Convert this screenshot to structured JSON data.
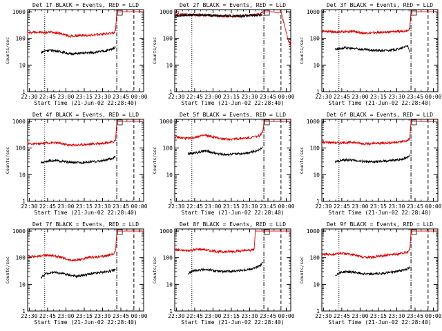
{
  "figure": {
    "colors": {
      "events": "#000000",
      "lld": "#e00000",
      "axis": "#000000",
      "background": "#ffffff"
    }
  },
  "chart_data": [
    {
      "type": "line",
      "title": "Det 1f BLACK = Events, RED = LLD",
      "xlabel": "Start Time (21-Jun-02 22:28:40)",
      "ylabel": "Counts/sec",
      "yscale": "log",
      "ylim": [
        1,
        1200
      ],
      "ytick_labels": [
        "1",
        "10",
        "100",
        "1000"
      ],
      "x_tick_labels": [
        "22:30",
        "22:45",
        "23:00",
        "23:15",
        "23:30",
        "23:45",
        "00:00"
      ],
      "xlim_minutes": [
        0,
        95
      ],
      "markers": {
        "dotted_minute": 14,
        "dashdot_minute": 73,
        "dashed_minute": 87
      },
      "series": [
        {
          "name": "LLD",
          "color": "#e00000",
          "x": [
            0,
            5,
            10,
            15,
            20,
            25,
            30,
            35,
            40,
            45,
            50,
            55,
            60,
            65,
            70,
            72,
            73,
            80,
            87,
            90,
            95
          ],
          "y": [
            160,
            175,
            170,
            165,
            175,
            160,
            140,
            120,
            125,
            130,
            130,
            135,
            145,
            150,
            160,
            200,
            1000,
            1000,
            1000,
            1000,
            1000
          ]
        },
        {
          "name": "Events",
          "color": "#000000",
          "x": [
            11,
            15,
            20,
            25,
            30,
            35,
            40,
            45,
            50,
            55,
            60,
            65,
            70,
            72
          ],
          "y": [
            30,
            35,
            36,
            33,
            30,
            26,
            27,
            28,
            29,
            30,
            32,
            35,
            42,
            48
          ]
        }
      ]
    },
    {
      "type": "line",
      "title": "Det 2f BLACK = Events, RED = LLD",
      "xlabel": "Start Time (21-Jun-02 22:28:40)",
      "ylabel": "Counts/sec",
      "yscale": "log",
      "ylim": [
        1,
        1200
      ],
      "ytick_labels": [
        "1",
        "10",
        "100",
        "1000"
      ],
      "x_tick_labels": [
        "22:30",
        "22:45",
        "23:00",
        "23:15",
        "23:30",
        "23:45",
        "00:00"
      ],
      "xlim_minutes": [
        0,
        95
      ],
      "markers": {
        "dotted_minute": 14,
        "dashdot_minute": 73,
        "dashed_minute": 87
      },
      "series": [
        {
          "name": "LLD",
          "color": "#e00000",
          "x": [
            0,
            5,
            10,
            15,
            20,
            25,
            30,
            35,
            40,
            45,
            50,
            55,
            60,
            65,
            70,
            72,
            73,
            76,
            80,
            84,
            87,
            90,
            93,
            95
          ],
          "y": [
            820,
            800,
            780,
            760,
            750,
            740,
            720,
            700,
            690,
            680,
            670,
            690,
            720,
            760,
            800,
            1000,
            1000,
            1000,
            1000,
            900,
            1000,
            300,
            80,
            60
          ]
        },
        {
          "name": "Events",
          "color": "#000000",
          "x": [
            0,
            5,
            10,
            15,
            20,
            25,
            30,
            35,
            40,
            45,
            50,
            55,
            60,
            65,
            70,
            72
          ],
          "y": [
            700,
            720,
            750,
            760,
            780,
            760,
            740,
            720,
            710,
            700,
            700,
            700,
            720,
            740,
            760,
            780
          ]
        }
      ]
    },
    {
      "type": "line",
      "title": "Det 3f BLACK = Events, RED = LLD",
      "xlabel": "Start Time (21-Jun-02 22:28:40)",
      "ylabel": "Counts/sec",
      "yscale": "log",
      "ylim": [
        1,
        1200
      ],
      "ytick_labels": [
        "1",
        "10",
        "100",
        "1000"
      ],
      "x_tick_labels": [
        "22:30",
        "22:45",
        "23:00",
        "23:15",
        "23:30",
        "23:45",
        "00:00"
      ],
      "xlim_minutes": [
        0,
        95
      ],
      "markers": {
        "dotted_minute": 14,
        "dashdot_minute": 73,
        "dashed_minute": 87
      },
      "series": [
        {
          "name": "LLD",
          "color": "#e00000",
          "x": [
            0,
            5,
            10,
            15,
            20,
            25,
            30,
            35,
            40,
            45,
            50,
            55,
            60,
            65,
            70,
            72,
            73,
            80,
            87,
            90,
            95
          ],
          "y": [
            190,
            185,
            175,
            175,
            180,
            185,
            170,
            160,
            160,
            165,
            170,
            175,
            180,
            185,
            200,
            240,
            1000,
            1000,
            1000,
            1000,
            1000
          ]
        },
        {
          "name": "Events",
          "color": "#000000",
          "x": [
            11,
            15,
            20,
            25,
            30,
            35,
            40,
            45,
            50,
            55,
            60,
            65,
            70,
            72
          ],
          "y": [
            40,
            42,
            44,
            42,
            40,
            38,
            36,
            35,
            35,
            36,
            38,
            42,
            55,
            30
          ]
        }
      ]
    },
    {
      "type": "line",
      "title": "Det 4f BLACK = Events, RED = LLD",
      "xlabel": "Start Time (21-Jun-02 22:28:40)",
      "ylabel": "Counts/sec",
      "yscale": "log",
      "ylim": [
        1,
        1200
      ],
      "ytick_labels": [
        "1",
        "10",
        "100",
        "1000"
      ],
      "x_tick_labels": [
        "22:30",
        "22:45",
        "23:00",
        "23:15",
        "23:30",
        "23:45",
        "00:00"
      ],
      "xlim_minutes": [
        0,
        95
      ],
      "markers": {
        "dotted_minute": 14,
        "dashdot_minute": 73,
        "dashed_minute": 87
      },
      "series": [
        {
          "name": "LLD",
          "color": "#e00000",
          "x": [
            0,
            5,
            10,
            15,
            20,
            25,
            30,
            35,
            40,
            45,
            50,
            55,
            60,
            65,
            70,
            72,
            73,
            80,
            87,
            90,
            95
          ],
          "y": [
            150,
            140,
            145,
            155,
            160,
            155,
            140,
            130,
            130,
            135,
            140,
            145,
            150,
            160,
            170,
            200,
            1000,
            1000,
            1000,
            1000,
            1000
          ]
        },
        {
          "name": "Events",
          "color": "#000000",
          "x": [
            11,
            15,
            20,
            25,
            30,
            35,
            40,
            45,
            50,
            55,
            60,
            65,
            70,
            72
          ],
          "y": [
            28,
            32,
            34,
            33,
            31,
            29,
            28,
            29,
            30,
            31,
            33,
            36,
            42,
            48
          ]
        }
      ]
    },
    {
      "type": "line",
      "title": "Det 5f BLACK = Events, RED = LLD",
      "xlabel": "Start Time (21-Jun-02 22:28:40)",
      "ylabel": "Counts/sec",
      "yscale": "log",
      "ylim": [
        1,
        1200
      ],
      "ytick_labels": [
        "1",
        "10",
        "100",
        "1000"
      ],
      "x_tick_labels": [
        "22:30",
        "22:45",
        "23:00",
        "23:15",
        "23:30",
        "23:45",
        "00:00"
      ],
      "xlim_minutes": [
        0,
        95
      ],
      "markers": {
        "dotted_minute": 14,
        "dashdot_minute": 73,
        "dashed_minute": 87
      },
      "series": [
        {
          "name": "LLD",
          "color": "#e00000",
          "x": [
            0,
            5,
            10,
            15,
            20,
            25,
            30,
            35,
            40,
            45,
            50,
            55,
            60,
            65,
            70,
            72,
            73,
            80,
            87,
            90,
            95
          ],
          "y": [
            260,
            240,
            230,
            240,
            280,
            300,
            270,
            240,
            220,
            215,
            220,
            230,
            240,
            260,
            300,
            400,
            1000,
            1000,
            1000,
            1000,
            1000
          ]
        },
        {
          "name": "Events",
          "color": "#000000",
          "x": [
            11,
            15,
            20,
            25,
            30,
            35,
            40,
            45,
            50,
            55,
            60,
            65,
            70,
            72
          ],
          "y": [
            60,
            65,
            70,
            78,
            70,
            62,
            58,
            58,
            60,
            63,
            68,
            75,
            90,
            110
          ]
        }
      ]
    },
    {
      "type": "line",
      "title": "Det 6f BLACK = Events, RED = LLD",
      "xlabel": "Start Time (21-Jun-02 22:28:40)",
      "ylabel": "Counts/sec",
      "yscale": "log",
      "ylim": [
        1,
        1200
      ],
      "ytick_labels": [
        "1",
        "10",
        "100",
        "1000"
      ],
      "x_tick_labels": [
        "22:30",
        "22:45",
        "23:00",
        "23:15",
        "23:30",
        "23:45",
        "00:00"
      ],
      "xlim_minutes": [
        0,
        95
      ],
      "markers": {
        "dotted_minute": 14,
        "dashdot_minute": 73,
        "dashed_minute": 87
      },
      "series": [
        {
          "name": "LLD",
          "color": "#e00000",
          "x": [
            0,
            5,
            10,
            15,
            20,
            25,
            30,
            35,
            40,
            45,
            50,
            55,
            60,
            65,
            70,
            72,
            73,
            80,
            87,
            90,
            95
          ],
          "y": [
            160,
            165,
            160,
            155,
            160,
            165,
            155,
            145,
            145,
            150,
            155,
            160,
            165,
            175,
            190,
            230,
            1000,
            1000,
            1000,
            1000,
            1000
          ]
        },
        {
          "name": "Events",
          "color": "#000000",
          "x": [
            11,
            15,
            20,
            25,
            30,
            35,
            40,
            45,
            50,
            55,
            60,
            65,
            70,
            72
          ],
          "y": [
            30,
            34,
            36,
            35,
            33,
            31,
            30,
            31,
            32,
            33,
            35,
            38,
            45,
            55
          ]
        }
      ]
    },
    {
      "type": "line",
      "title": "Det 7f BLACK = Events, RED = LLD",
      "xlabel": "Start Time (21-Jun-02 22:28:40)",
      "ylabel": "Counts/sec",
      "yscale": "log",
      "ylim": [
        1,
        1200
      ],
      "ytick_labels": [
        "1",
        "10",
        "100",
        "1000"
      ],
      "x_tick_labels": [
        "22:30",
        "22:45",
        "23:00",
        "23:15",
        "23:30",
        "23:45",
        "00:00"
      ],
      "xlim_minutes": [
        0,
        95
      ],
      "markers": {
        "dotted_minute": 14,
        "dashdot_minute": 73,
        "dashed_minute": 87
      },
      "series": [
        {
          "name": "LLD",
          "color": "#e00000",
          "x": [
            0,
            5,
            10,
            15,
            20,
            25,
            30,
            35,
            40,
            45,
            50,
            55,
            60,
            65,
            70,
            72,
            73,
            80,
            87,
            90,
            95
          ],
          "y": [
            120,
            110,
            115,
            125,
            120,
            110,
            95,
            80,
            80,
            90,
            100,
            105,
            110,
            120,
            140,
            180,
            1000,
            1000,
            1000,
            1000,
            1000
          ]
        },
        {
          "name": "Events",
          "color": "#000000",
          "x": [
            11,
            15,
            20,
            25,
            30,
            35,
            40,
            45,
            50,
            55,
            60,
            65,
            70,
            72
          ],
          "y": [
            18,
            25,
            28,
            27,
            25,
            22,
            20,
            22,
            24,
            26,
            28,
            30,
            33,
            36
          ]
        }
      ]
    },
    {
      "type": "line",
      "title": "Det 8f BLACK = Events, RED = LLD",
      "xlabel": "Start Time (21-Jun-02 22:28:40)",
      "ylabel": "Counts/sec",
      "yscale": "log",
      "ylim": [
        1,
        1200
      ],
      "ytick_labels": [
        "1",
        "10",
        "100",
        "1000"
      ],
      "x_tick_labels": [
        "22:30",
        "22:45",
        "23:00",
        "23:15",
        "23:30",
        "23:45",
        "00:00"
      ],
      "xlim_minutes": [
        0,
        95
      ],
      "markers": {
        "dotted_minute": 14,
        "dashdot_minute": 73,
        "dashed_minute": 87
      },
      "series": [
        {
          "name": "LLD",
          "color": "#e00000",
          "x": [
            0,
            5,
            10,
            15,
            20,
            25,
            30,
            35,
            40,
            45,
            50,
            55,
            60,
            65,
            66,
            67,
            70,
            73,
            80,
            87,
            90,
            95
          ],
          "y": [
            200,
            190,
            185,
            195,
            210,
            200,
            180,
            170,
            165,
            170,
            175,
            180,
            190,
            200,
            1000,
            1000,
            1000,
            1000,
            1000,
            1000,
            1000,
            1000
          ]
        },
        {
          "name": "Events",
          "color": "#000000",
          "x": [
            11,
            15,
            20,
            25,
            30,
            35,
            40,
            45,
            50,
            55,
            60,
            65,
            70,
            72
          ],
          "y": [
            25,
            32,
            35,
            36,
            34,
            31,
            30,
            31,
            32,
            34,
            36,
            40,
            50,
            65
          ]
        }
      ]
    },
    {
      "type": "line",
      "title": "Det 9f BLACK = Events, RED = LLD",
      "xlabel": "Start Time (21-Jun-02 22:28:40)",
      "ylabel": "Counts/sec",
      "yscale": "log",
      "ylim": [
        1,
        1200
      ],
      "ytick_labels": [
        "1",
        "10",
        "100",
        "1000"
      ],
      "x_tick_labels": [
        "22:30",
        "22:45",
        "23:00",
        "23:15",
        "23:30",
        "23:45",
        "00:00"
      ],
      "xlim_minutes": [
        0,
        95
      ],
      "markers": {
        "dotted_minute": 14,
        "dashdot_minute": 73,
        "dashed_minute": 87
      },
      "series": [
        {
          "name": "LLD",
          "color": "#e00000",
          "x": [
            0,
            5,
            10,
            15,
            20,
            25,
            30,
            35,
            40,
            45,
            50,
            55,
            60,
            65,
            70,
            72,
            73,
            80,
            87,
            90,
            95
          ],
          "y": [
            140,
            130,
            135,
            145,
            140,
            130,
            115,
            105,
            105,
            110,
            120,
            125,
            135,
            145,
            160,
            200,
            1000,
            1000,
            1000,
            1000,
            1000
          ]
        },
        {
          "name": "Events",
          "color": "#000000",
          "x": [
            11,
            15,
            20,
            25,
            30,
            35,
            40,
            45,
            50,
            55,
            60,
            65,
            70,
            72
          ],
          "y": [
            22,
            28,
            30,
            29,
            27,
            25,
            24,
            25,
            26,
            28,
            30,
            33,
            38,
            42
          ]
        }
      ]
    }
  ]
}
